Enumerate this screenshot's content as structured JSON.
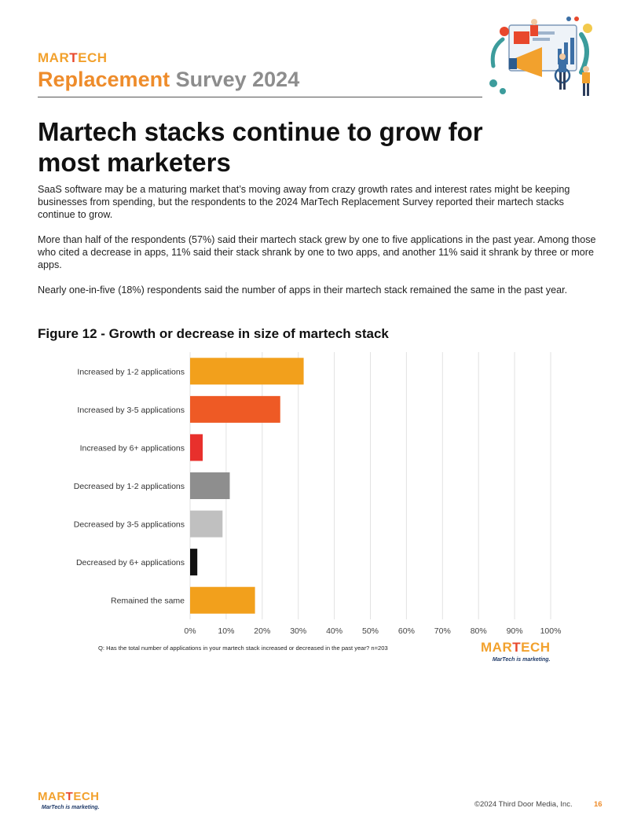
{
  "header": {
    "brand": {
      "mar": "MAR",
      "t": "T",
      "ech": "ECH"
    },
    "title_part1": "Replacement",
    "title_part2": "Survey 2024"
  },
  "heading": "Martech stacks continue to grow for most marketers",
  "paragraphs": [
    "SaaS software may be a maturing market that’s moving away from crazy growth rates and interest rates might be keeping businesses from spending, but the respondents to the 2024 MarTech Replacement Survey reported their martech stacks continue to grow.",
    "More than half of the respondents (57%) said their martech stack grew by one to five applications in the past year. Among those who cited a decrease in apps, 11% said their stack shrank by one to two apps, and another 11% said it shrank by three or more apps.",
    "Nearly one-in-five (18%) respondents said the number of apps in their martech stack remained the same in the past year."
  ],
  "figure_title": "Figure 12 - Growth or decrease in size of martech stack",
  "chart_data": {
    "type": "bar",
    "orientation": "horizontal",
    "categories": [
      "Increased by 1-2 applications",
      "Increased by 3-5 applications",
      "Increased by 6+ applications",
      "Decreased by 1-2 applications",
      "Decreased by 3-5 applications",
      "Decreased by 6+ applications",
      "Remained the same"
    ],
    "values": [
      31.5,
      25,
      3.5,
      11,
      9,
      2,
      18
    ],
    "colors": [
      "#f2a01c",
      "#ee5a25",
      "#e8302c",
      "#8e8e8e",
      "#c0c0c0",
      "#111111",
      "#f2a01c"
    ],
    "xlim": [
      0,
      100
    ],
    "x_ticks": [
      "0%",
      "10%",
      "20%",
      "30%",
      "40%",
      "50%",
      "60%",
      "70%",
      "80%",
      "90%",
      "100%"
    ],
    "grid": true,
    "footnote": "Q: Has the total number of applications in your martech stack increased or decreased in the past year? n=203"
  },
  "chart_logo": {
    "mar": "MAR",
    "t": "T",
    "ech": "ECH",
    "tagline": "MarTech is marketing."
  },
  "footer": {
    "logo": {
      "mar": "MAR",
      "t": "T",
      "ech": "ECH",
      "tagline": "MarTech is marketing."
    },
    "copyright": "©2024 Third Door Media, Inc.",
    "page_number": "16"
  },
  "icons": {
    "illustration": "marketing-team-illustration"
  }
}
